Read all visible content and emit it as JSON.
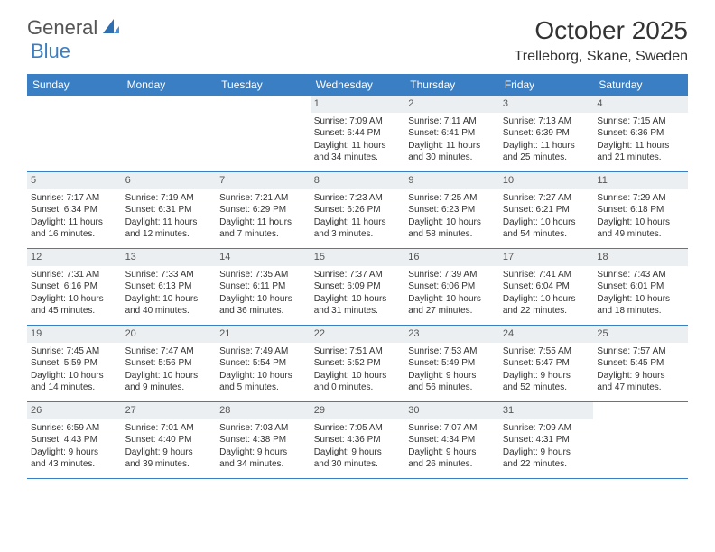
{
  "logo": {
    "text1": "General",
    "text2": "Blue"
  },
  "title": "October 2025",
  "location": "Trelleborg, Skane, Sweden",
  "colors": {
    "accent": "#3a7fc4",
    "dayNumBg": "#eceff1",
    "text": "#333333",
    "white": "#ffffff"
  },
  "weekdays": [
    "Sunday",
    "Monday",
    "Tuesday",
    "Wednesday",
    "Thursday",
    "Friday",
    "Saturday"
  ],
  "weeks": [
    [
      null,
      null,
      null,
      {
        "n": "1",
        "sr": "Sunrise: 7:09 AM",
        "ss": "Sunset: 6:44 PM",
        "d1": "Daylight: 11 hours",
        "d2": "and 34 minutes."
      },
      {
        "n": "2",
        "sr": "Sunrise: 7:11 AM",
        "ss": "Sunset: 6:41 PM",
        "d1": "Daylight: 11 hours",
        "d2": "and 30 minutes."
      },
      {
        "n": "3",
        "sr": "Sunrise: 7:13 AM",
        "ss": "Sunset: 6:39 PM",
        "d1": "Daylight: 11 hours",
        "d2": "and 25 minutes."
      },
      {
        "n": "4",
        "sr": "Sunrise: 7:15 AM",
        "ss": "Sunset: 6:36 PM",
        "d1": "Daylight: 11 hours",
        "d2": "and 21 minutes."
      }
    ],
    [
      {
        "n": "5",
        "sr": "Sunrise: 7:17 AM",
        "ss": "Sunset: 6:34 PM",
        "d1": "Daylight: 11 hours",
        "d2": "and 16 minutes."
      },
      {
        "n": "6",
        "sr": "Sunrise: 7:19 AM",
        "ss": "Sunset: 6:31 PM",
        "d1": "Daylight: 11 hours",
        "d2": "and 12 minutes."
      },
      {
        "n": "7",
        "sr": "Sunrise: 7:21 AM",
        "ss": "Sunset: 6:29 PM",
        "d1": "Daylight: 11 hours",
        "d2": "and 7 minutes."
      },
      {
        "n": "8",
        "sr": "Sunrise: 7:23 AM",
        "ss": "Sunset: 6:26 PM",
        "d1": "Daylight: 11 hours",
        "d2": "and 3 minutes."
      },
      {
        "n": "9",
        "sr": "Sunrise: 7:25 AM",
        "ss": "Sunset: 6:23 PM",
        "d1": "Daylight: 10 hours",
        "d2": "and 58 minutes."
      },
      {
        "n": "10",
        "sr": "Sunrise: 7:27 AM",
        "ss": "Sunset: 6:21 PM",
        "d1": "Daylight: 10 hours",
        "d2": "and 54 minutes."
      },
      {
        "n": "11",
        "sr": "Sunrise: 7:29 AM",
        "ss": "Sunset: 6:18 PM",
        "d1": "Daylight: 10 hours",
        "d2": "and 49 minutes."
      }
    ],
    [
      {
        "n": "12",
        "sr": "Sunrise: 7:31 AM",
        "ss": "Sunset: 6:16 PM",
        "d1": "Daylight: 10 hours",
        "d2": "and 45 minutes."
      },
      {
        "n": "13",
        "sr": "Sunrise: 7:33 AM",
        "ss": "Sunset: 6:13 PM",
        "d1": "Daylight: 10 hours",
        "d2": "and 40 minutes."
      },
      {
        "n": "14",
        "sr": "Sunrise: 7:35 AM",
        "ss": "Sunset: 6:11 PM",
        "d1": "Daylight: 10 hours",
        "d2": "and 36 minutes."
      },
      {
        "n": "15",
        "sr": "Sunrise: 7:37 AM",
        "ss": "Sunset: 6:09 PM",
        "d1": "Daylight: 10 hours",
        "d2": "and 31 minutes."
      },
      {
        "n": "16",
        "sr": "Sunrise: 7:39 AM",
        "ss": "Sunset: 6:06 PM",
        "d1": "Daylight: 10 hours",
        "d2": "and 27 minutes."
      },
      {
        "n": "17",
        "sr": "Sunrise: 7:41 AM",
        "ss": "Sunset: 6:04 PM",
        "d1": "Daylight: 10 hours",
        "d2": "and 22 minutes."
      },
      {
        "n": "18",
        "sr": "Sunrise: 7:43 AM",
        "ss": "Sunset: 6:01 PM",
        "d1": "Daylight: 10 hours",
        "d2": "and 18 minutes."
      }
    ],
    [
      {
        "n": "19",
        "sr": "Sunrise: 7:45 AM",
        "ss": "Sunset: 5:59 PM",
        "d1": "Daylight: 10 hours",
        "d2": "and 14 minutes."
      },
      {
        "n": "20",
        "sr": "Sunrise: 7:47 AM",
        "ss": "Sunset: 5:56 PM",
        "d1": "Daylight: 10 hours",
        "d2": "and 9 minutes."
      },
      {
        "n": "21",
        "sr": "Sunrise: 7:49 AM",
        "ss": "Sunset: 5:54 PM",
        "d1": "Daylight: 10 hours",
        "d2": "and 5 minutes."
      },
      {
        "n": "22",
        "sr": "Sunrise: 7:51 AM",
        "ss": "Sunset: 5:52 PM",
        "d1": "Daylight: 10 hours",
        "d2": "and 0 minutes."
      },
      {
        "n": "23",
        "sr": "Sunrise: 7:53 AM",
        "ss": "Sunset: 5:49 PM",
        "d1": "Daylight: 9 hours",
        "d2": "and 56 minutes."
      },
      {
        "n": "24",
        "sr": "Sunrise: 7:55 AM",
        "ss": "Sunset: 5:47 PM",
        "d1": "Daylight: 9 hours",
        "d2": "and 52 minutes."
      },
      {
        "n": "25",
        "sr": "Sunrise: 7:57 AM",
        "ss": "Sunset: 5:45 PM",
        "d1": "Daylight: 9 hours",
        "d2": "and 47 minutes."
      }
    ],
    [
      {
        "n": "26",
        "sr": "Sunrise: 6:59 AM",
        "ss": "Sunset: 4:43 PM",
        "d1": "Daylight: 9 hours",
        "d2": "and 43 minutes."
      },
      {
        "n": "27",
        "sr": "Sunrise: 7:01 AM",
        "ss": "Sunset: 4:40 PM",
        "d1": "Daylight: 9 hours",
        "d2": "and 39 minutes."
      },
      {
        "n": "28",
        "sr": "Sunrise: 7:03 AM",
        "ss": "Sunset: 4:38 PM",
        "d1": "Daylight: 9 hours",
        "d2": "and 34 minutes."
      },
      {
        "n": "29",
        "sr": "Sunrise: 7:05 AM",
        "ss": "Sunset: 4:36 PM",
        "d1": "Daylight: 9 hours",
        "d2": "and 30 minutes."
      },
      {
        "n": "30",
        "sr": "Sunrise: 7:07 AM",
        "ss": "Sunset: 4:34 PM",
        "d1": "Daylight: 9 hours",
        "d2": "and 26 minutes."
      },
      {
        "n": "31",
        "sr": "Sunrise: 7:09 AM",
        "ss": "Sunset: 4:31 PM",
        "d1": "Daylight: 9 hours",
        "d2": "and 22 minutes."
      },
      null
    ]
  ]
}
